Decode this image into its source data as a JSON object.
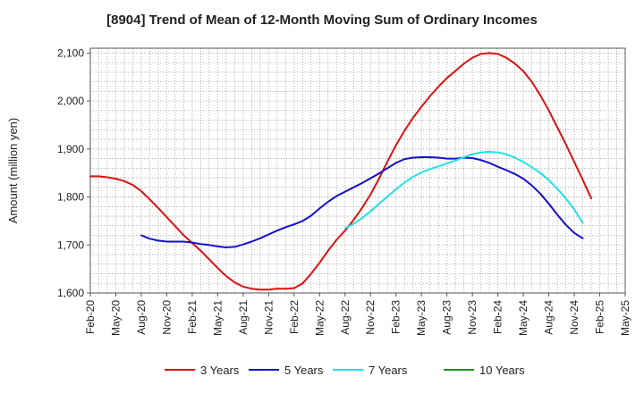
{
  "chart_data": {
    "type": "line",
    "title": "[8904]  Trend of Mean of 12-Month Moving Sum of Ordinary Incomes",
    "ylabel": "Amount (million yen)",
    "xlabel": "",
    "ylim": [
      1600,
      2110
    ],
    "yticks": [
      1600,
      1700,
      1800,
      1900,
      2000,
      2100
    ],
    "ytick_labels": [
      "1,600",
      "1,700",
      "1,800",
      "1,900",
      "2,000",
      "2,100"
    ],
    "x_labels": [
      "Feb-20",
      "May-20",
      "Aug-20",
      "Nov-20",
      "Feb-21",
      "May-21",
      "Aug-21",
      "Nov-21",
      "Feb-22",
      "May-22",
      "Aug-22",
      "Nov-22",
      "Feb-23",
      "May-23",
      "Aug-23",
      "Nov-23",
      "Feb-24",
      "May-24",
      "Aug-24",
      "Nov-24",
      "Feb-25",
      "May-25"
    ],
    "x_range": [
      0,
      63
    ],
    "grid": true,
    "legend_position": "bottom",
    "series": [
      {
        "name": "3 Years",
        "color": "#dd1111",
        "points": [
          [
            0,
            1843
          ],
          [
            1,
            1843
          ],
          [
            2,
            1841
          ],
          [
            3,
            1838
          ],
          [
            4,
            1833
          ],
          [
            5,
            1825
          ],
          [
            6,
            1812
          ],
          [
            7,
            1795
          ],
          [
            8,
            1777
          ],
          [
            9,
            1758
          ],
          [
            10,
            1739
          ],
          [
            11,
            1720
          ],
          [
            12,
            1704
          ],
          [
            13,
            1688
          ],
          [
            14,
            1670
          ],
          [
            15,
            1652
          ],
          [
            16,
            1635
          ],
          [
            17,
            1622
          ],
          [
            18,
            1613
          ],
          [
            19,
            1609
          ],
          [
            20,
            1607
          ],
          [
            21,
            1607
          ],
          [
            22,
            1609
          ],
          [
            23,
            1609
          ],
          [
            24,
            1610
          ],
          [
            25,
            1620
          ],
          [
            26,
            1640
          ],
          [
            27,
            1663
          ],
          [
            28,
            1688
          ],
          [
            29,
            1711
          ],
          [
            30,
            1730
          ],
          [
            31,
            1752
          ],
          [
            32,
            1777
          ],
          [
            33,
            1805
          ],
          [
            34,
            1838
          ],
          [
            35,
            1874
          ],
          [
            36,
            1908
          ],
          [
            37,
            1938
          ],
          [
            38,
            1965
          ],
          [
            39,
            1988
          ],
          [
            40,
            2010
          ],
          [
            41,
            2030
          ],
          [
            42,
            2048
          ],
          [
            43,
            2063
          ],
          [
            44,
            2078
          ],
          [
            45,
            2090
          ],
          [
            46,
            2098
          ],
          [
            47,
            2100
          ],
          [
            48,
            2098
          ],
          [
            49,
            2090
          ],
          [
            50,
            2078
          ],
          [
            51,
            2062
          ],
          [
            52,
            2040
          ],
          [
            53,
            2012
          ],
          [
            54,
            1980
          ],
          [
            55,
            1945
          ],
          [
            56,
            1910
          ],
          [
            57,
            1873
          ],
          [
            58,
            1836
          ],
          [
            59,
            1797
          ]
        ]
      },
      {
        "name": "5 Years",
        "color": "#1111cc",
        "points": [
          [
            6,
            1720
          ],
          [
            7,
            1713
          ],
          [
            8,
            1709
          ],
          [
            9,
            1707
          ],
          [
            10,
            1707
          ],
          [
            11,
            1707
          ],
          [
            12,
            1705
          ],
          [
            13,
            1702
          ],
          [
            14,
            1700
          ],
          [
            15,
            1697
          ],
          [
            16,
            1695
          ],
          [
            17,
            1696
          ],
          [
            18,
            1701
          ],
          [
            19,
            1707
          ],
          [
            20,
            1714
          ],
          [
            21,
            1722
          ],
          [
            22,
            1730
          ],
          [
            23,
            1737
          ],
          [
            24,
            1743
          ],
          [
            25,
            1750
          ],
          [
            26,
            1761
          ],
          [
            27,
            1776
          ],
          [
            28,
            1790
          ],
          [
            29,
            1802
          ],
          [
            30,
            1811
          ],
          [
            31,
            1820
          ],
          [
            32,
            1829
          ],
          [
            33,
            1839
          ],
          [
            34,
            1849
          ],
          [
            35,
            1860
          ],
          [
            36,
            1871
          ],
          [
            37,
            1879
          ],
          [
            38,
            1882
          ],
          [
            39,
            1883
          ],
          [
            40,
            1883
          ],
          [
            41,
            1882
          ],
          [
            42,
            1880
          ],
          [
            43,
            1880
          ],
          [
            44,
            1882
          ],
          [
            45,
            1881
          ],
          [
            46,
            1877
          ],
          [
            47,
            1871
          ],
          [
            48,
            1863
          ],
          [
            49,
            1856
          ],
          [
            50,
            1848
          ],
          [
            51,
            1838
          ],
          [
            52,
            1824
          ],
          [
            53,
            1807
          ],
          [
            54,
            1786
          ],
          [
            55,
            1763
          ],
          [
            56,
            1742
          ],
          [
            57,
            1725
          ],
          [
            58,
            1714
          ]
        ]
      },
      {
        "name": "7 Years",
        "color": "#22e0e8",
        "points": [
          [
            30,
            1735
          ],
          [
            31,
            1744
          ],
          [
            32,
            1756
          ],
          [
            33,
            1770
          ],
          [
            34,
            1786
          ],
          [
            35,
            1801
          ],
          [
            36,
            1816
          ],
          [
            37,
            1830
          ],
          [
            38,
            1842
          ],
          [
            39,
            1851
          ],
          [
            40,
            1858
          ],
          [
            41,
            1864
          ],
          [
            42,
            1870
          ],
          [
            43,
            1876
          ],
          [
            44,
            1883
          ],
          [
            45,
            1889
          ],
          [
            46,
            1893
          ],
          [
            47,
            1894
          ],
          [
            48,
            1893
          ],
          [
            49,
            1889
          ],
          [
            50,
            1882
          ],
          [
            51,
            1873
          ],
          [
            52,
            1862
          ],
          [
            53,
            1850
          ],
          [
            54,
            1835
          ],
          [
            55,
            1817
          ],
          [
            56,
            1797
          ],
          [
            57,
            1774
          ],
          [
            58,
            1746
          ]
        ]
      },
      {
        "name": "10 Years",
        "color": "#228822",
        "points": []
      }
    ]
  }
}
